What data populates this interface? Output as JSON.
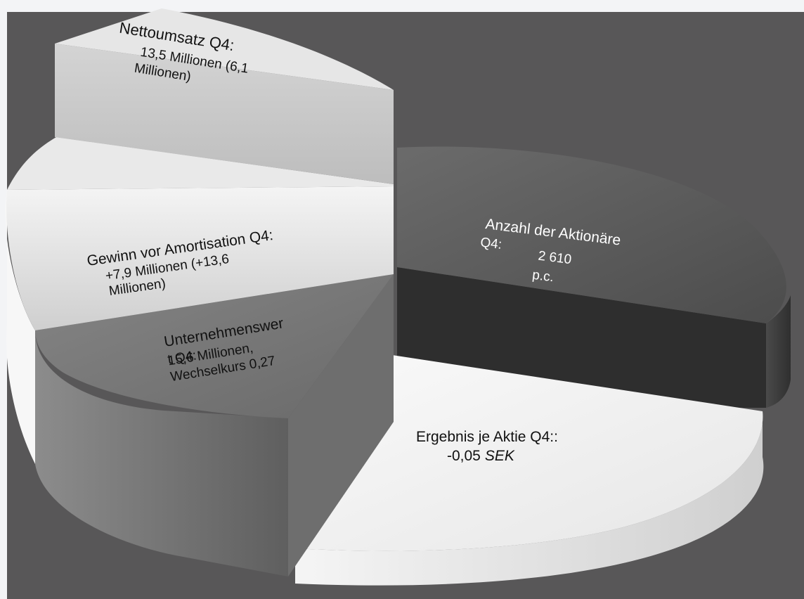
{
  "segments": {
    "nettoumsatz": {
      "title": "Nettoumsatz Q4:",
      "line1": "13,5 Millionen (6,1",
      "line2": "Millionen)"
    },
    "gewinn": {
      "title": "Gewinn vor Amortisation Q4:",
      "line1": "+7,9 Millionen (+13,6",
      "line2": "Millionen)"
    },
    "unternehmenswert": {
      "title": "Unternehmenswer",
      "line1": "t Q4:",
      "line2": "15,6 Millionen,",
      "line3": "Wechselkurs 0,27"
    },
    "aktionaere": {
      "title": "Anzahl der Aktionäre",
      "prefix": "Q4:",
      "value": "2 610",
      "unit": "p.c."
    },
    "ergebnis": {
      "title": "Ergebnis je Aktie Q4::",
      "value": "-0,05",
      "unit": "SEK"
    }
  },
  "colors": {
    "background_outer": "#f3f4f6",
    "background_panel": "#585758",
    "segment_light_top": "#dadada",
    "segment_mid_top": "#7a7a7a",
    "segment_dark_top": "#5a5a5a",
    "segment_white_top": "#f2f2f2"
  }
}
